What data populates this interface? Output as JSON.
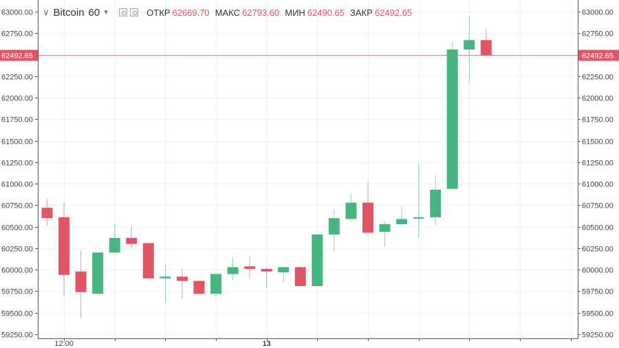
{
  "header": {
    "symbol": "Bitcoin",
    "interval": "60",
    "open_label": "ОТКР",
    "open_value": "62669.70",
    "high_label": "МАКС",
    "high_value": "62793.60",
    "low_label": "МИН",
    "low_value": "62490.65",
    "close_label": "ЗАКР",
    "close_value": "62492.65",
    "icons": [
      "chevron-down-icon",
      "dropdown-icon",
      "settings-icon",
      "visibility-icon"
    ]
  },
  "price_marker": {
    "value": 62492.65,
    "label": "62492.65",
    "color": "#e05567"
  },
  "colors": {
    "up": "#48b57e",
    "down": "#e05567",
    "grid": "#eef0f3",
    "axis": "#444444"
  },
  "chart_data": {
    "type": "candlestick",
    "title": "Bitcoin, 60",
    "ylim": [
      59250,
      63000
    ],
    "y_ticks": [
      59250,
      59500,
      59750,
      60000,
      60250,
      60500,
      60750,
      61000,
      61250,
      61500,
      61750,
      62000,
      62250,
      62500,
      62750,
      63000
    ],
    "x_tick_labels": [
      {
        "index": 1,
        "label": "12:00"
      },
      {
        "index": 13,
        "label": "13"
      }
    ],
    "x_grid_indices": [
      1,
      4,
      7,
      10,
      13,
      16,
      19,
      22,
      25,
      28,
      31
    ],
    "grid": true,
    "candles": [
      {
        "o": 60720,
        "h": 60820,
        "l": 60510,
        "c": 60600
      },
      {
        "o": 60610,
        "h": 60780,
        "l": 59700,
        "c": 59940
      },
      {
        "o": 59980,
        "h": 60220,
        "l": 59440,
        "c": 59740
      },
      {
        "o": 59720,
        "h": 60200,
        "l": 59720,
        "c": 60200
      },
      {
        "o": 60200,
        "h": 60530,
        "l": 60180,
        "c": 60370
      },
      {
        "o": 60370,
        "h": 60510,
        "l": 60250,
        "c": 60300
      },
      {
        "o": 60310,
        "h": 60310,
        "l": 59900,
        "c": 59900
      },
      {
        "o": 59900,
        "h": 60060,
        "l": 59620,
        "c": 59920
      },
      {
        "o": 59920,
        "h": 60010,
        "l": 59660,
        "c": 59870
      },
      {
        "o": 59870,
        "h": 59880,
        "l": 59720,
        "c": 59720
      },
      {
        "o": 59720,
        "h": 59960,
        "l": 59690,
        "c": 59950
      },
      {
        "o": 59950,
        "h": 60150,
        "l": 59880,
        "c": 60030
      },
      {
        "o": 60040,
        "h": 60160,
        "l": 59900,
        "c": 60010
      },
      {
        "o": 60010,
        "h": 60030,
        "l": 59790,
        "c": 59980
      },
      {
        "o": 59970,
        "h": 60040,
        "l": 59850,
        "c": 60030
      },
      {
        "o": 60030,
        "h": 60040,
        "l": 59810,
        "c": 59810
      },
      {
        "o": 59810,
        "h": 60410,
        "l": 59810,
        "c": 60410
      },
      {
        "o": 60410,
        "h": 60700,
        "l": 60210,
        "c": 60600
      },
      {
        "o": 60590,
        "h": 60880,
        "l": 60560,
        "c": 60780
      },
      {
        "o": 60780,
        "h": 61020,
        "l": 60430,
        "c": 60430
      },
      {
        "o": 60440,
        "h": 60560,
        "l": 60270,
        "c": 60530
      },
      {
        "o": 60530,
        "h": 60740,
        "l": 60510,
        "c": 60590
      },
      {
        "o": 60600,
        "h": 61230,
        "l": 60370,
        "c": 60610
      },
      {
        "o": 60610,
        "h": 61100,
        "l": 60520,
        "c": 60930
      },
      {
        "o": 60940,
        "h": 62650,
        "l": 60940,
        "c": 62560
      },
      {
        "o": 62560,
        "h": 62950,
        "l": 62170,
        "c": 62670
      },
      {
        "o": 62669.7,
        "h": 62793.6,
        "l": 62490.65,
        "c": 62492.65
      }
    ]
  }
}
